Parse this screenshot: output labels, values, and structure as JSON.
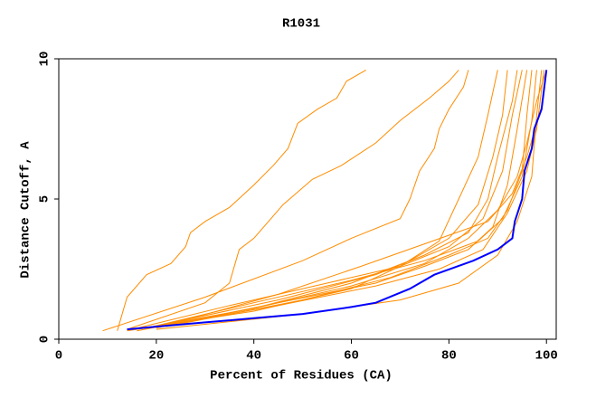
{
  "chart_data": {
    "type": "line",
    "title": "R1031",
    "x_label": "Percent of Residues (CA)",
    "y_label": "Distance Cutoff, A",
    "xlim": [
      0,
      102
    ],
    "ylim": [
      0,
      10
    ],
    "xticks": [
      0,
      20,
      40,
      60,
      80,
      100
    ],
    "yticks": [
      0,
      5,
      10
    ],
    "series": [
      {
        "color": "#ff8c00",
        "x": [
          12,
          14,
          18,
          23,
          26,
          27,
          30,
          35,
          40,
          44,
          47,
          49,
          53,
          57,
          59,
          63
        ],
        "values": [
          0.3,
          1.5,
          2.3,
          2.7,
          3.3,
          3.8,
          4.2,
          4.7,
          5.5,
          6.2,
          6.8,
          7.7,
          8.2,
          8.6,
          9.2,
          9.6
        ]
      },
      {
        "color": "#ff8c00",
        "x": [
          14,
          30,
          35,
          37,
          40,
          43,
          46,
          52,
          58,
          65,
          70,
          76,
          80,
          82
        ],
        "values": [
          0.35,
          1.3,
          2.0,
          3.2,
          3.6,
          4.2,
          4.8,
          5.7,
          6.2,
          7.0,
          7.8,
          8.6,
          9.2,
          9.6
        ]
      },
      {
        "color": "#ff8c00",
        "x": [
          9,
          30,
          50,
          60,
          70,
          72,
          74,
          77,
          78,
          80,
          83,
          84
        ],
        "values": [
          0.3,
          1.5,
          2.8,
          3.6,
          4.3,
          5.0,
          6.0,
          6.8,
          7.5,
          8.2,
          9.0,
          9.6
        ]
      },
      {
        "color": "#ff8c00",
        "x": [
          14,
          40,
          60,
          70,
          78,
          82,
          86,
          88,
          90
        ],
        "values": [
          0.3,
          1.0,
          1.8,
          2.6,
          3.5,
          5.0,
          6.5,
          8.0,
          9.6
        ]
      },
      {
        "color": "#ff8c00",
        "x": [
          16,
          40,
          60,
          72,
          80,
          86,
          89,
          91,
          92
        ],
        "values": [
          0.35,
          1.1,
          2.0,
          2.8,
          3.6,
          4.8,
          6.5,
          8.0,
          9.6
        ]
      },
      {
        "color": "#ff8c00",
        "x": [
          18,
          45,
          65,
          75,
          84,
          88,
          90,
          93,
          94
        ],
        "values": [
          0.4,
          1.4,
          2.3,
          3.0,
          3.8,
          5.0,
          6.5,
          8.5,
          9.6
        ]
      },
      {
        "color": "#ff8c00",
        "x": [
          15,
          35,
          55,
          70,
          80,
          87,
          91,
          93,
          95
        ],
        "values": [
          0.35,
          1.2,
          2.0,
          2.6,
          3.3,
          4.3,
          6.0,
          8.0,
          9.6
        ]
      },
      {
        "color": "#ff8c00",
        "x": [
          20,
          45,
          65,
          75,
          84,
          89,
          92,
          94,
          96
        ],
        "values": [
          0.4,
          1.3,
          2.0,
          2.6,
          3.2,
          4.0,
          5.5,
          7.5,
          9.6
        ]
      },
      {
        "color": "#ff8c00",
        "x": [
          22,
          50,
          68,
          80,
          88,
          92,
          95,
          96,
          97
        ],
        "values": [
          0.45,
          1.4,
          2.2,
          3.0,
          3.6,
          4.6,
          6.0,
          8.0,
          9.6
        ]
      },
      {
        "color": "#ff8c00",
        "x": [
          18,
          40,
          60,
          75,
          86,
          91,
          95,
          97,
          98
        ],
        "values": [
          0.4,
          1.3,
          2.1,
          2.8,
          3.5,
          4.3,
          5.8,
          7.8,
          9.6
        ]
      },
      {
        "color": "#ff8c00",
        "x": [
          20,
          50,
          70,
          82,
          90,
          94,
          97,
          98,
          99
        ],
        "values": [
          0.35,
          0.9,
          1.4,
          2.0,
          3.0,
          4.2,
          5.8,
          8.0,
          9.6
        ]
      },
      {
        "color": "#ff8c00",
        "x": [
          20,
          45,
          65,
          78,
          87,
          92,
          96,
          98,
          99.5
        ],
        "values": [
          0.45,
          1.2,
          1.9,
          2.5,
          3.2,
          4.5,
          6.0,
          7.5,
          9.6
        ]
      },
      {
        "color": "#ff8c00",
        "x": [
          16,
          40,
          60,
          75,
          84,
          90,
          94,
          96,
          98,
          100
        ],
        "values": [
          0.3,
          1.1,
          1.9,
          2.7,
          3.6,
          4.6,
          5.8,
          7.0,
          8.5,
          9.6
        ]
      },
      {
        "color": "#ff8c00",
        "x": [
          22,
          45,
          62,
          75,
          88,
          93,
          96,
          99,
          100
        ],
        "values": [
          0.5,
          1.6,
          2.6,
          3.4,
          4.2,
          5.2,
          6.5,
          8.3,
          9.6
        ]
      },
      {
        "color": "#0000ff",
        "x": [
          14,
          20,
          30,
          40,
          50,
          60,
          65,
          72,
          77,
          85,
          90,
          93,
          93.5,
          95,
          95.5,
          97,
          97.5,
          99,
          100
        ],
        "values": [
          0.35,
          0.45,
          0.6,
          0.75,
          0.9,
          1.15,
          1.3,
          1.8,
          2.3,
          2.8,
          3.2,
          3.6,
          4.2,
          5.0,
          6.0,
          6.8,
          7.5,
          8.2,
          9.6
        ]
      }
    ]
  }
}
